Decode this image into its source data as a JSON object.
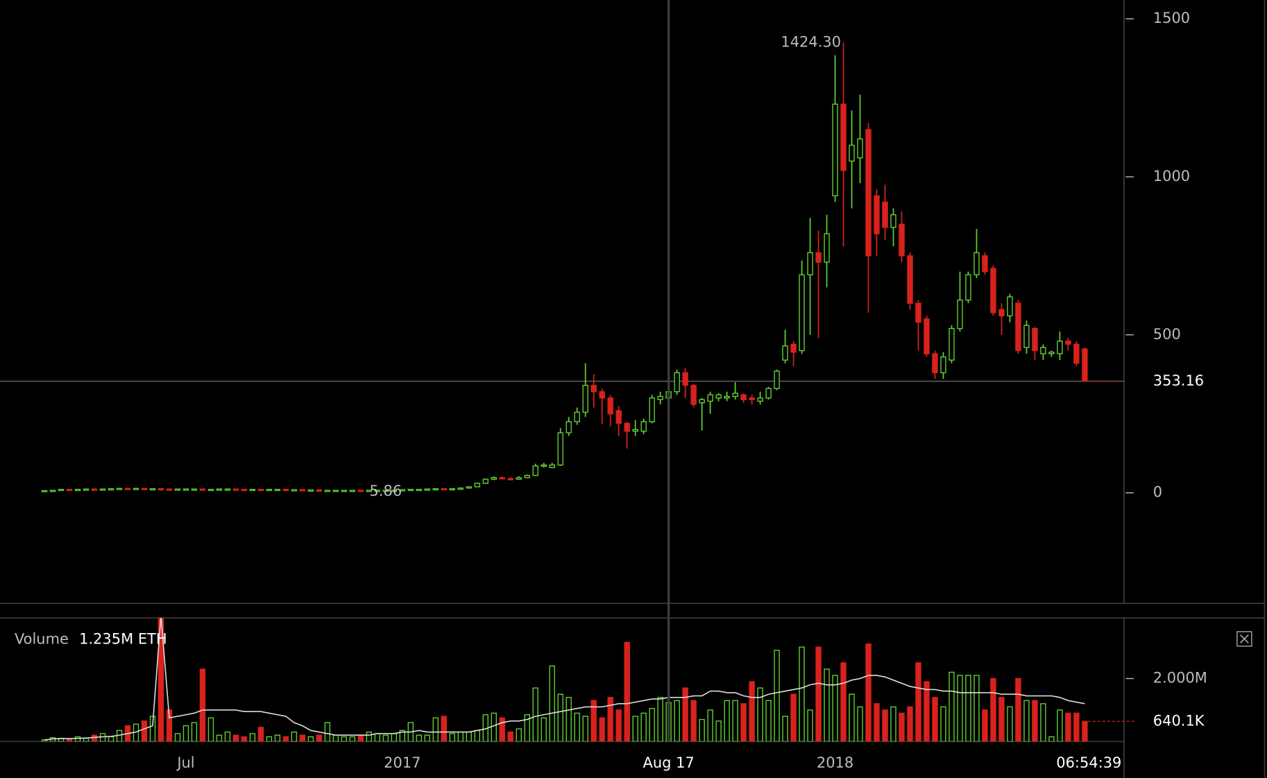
{
  "chart_data": [
    {
      "type": "candlestick",
      "colors": {
        "up": "#62d033",
        "down": "#d8221c"
      },
      "categories": [
        null,
        null,
        null,
        null,
        null,
        null,
        null,
        null,
        null,
        null,
        null,
        null,
        null,
        null,
        null,
        null,
        null,
        null,
        null,
        null,
        null,
        null,
        null,
        null,
        null,
        null,
        null,
        null,
        null,
        null,
        null,
        null,
        null,
        null,
        null,
        null,
        null,
        null,
        null,
        null,
        null,
        null,
        null,
        null,
        null,
        null,
        null,
        null,
        null,
        null,
        null,
        null,
        null,
        null,
        null,
        null,
        null,
        null,
        null,
        null,
        null,
        null,
        null,
        null,
        null,
        null,
        null,
        null,
        null,
        null,
        null,
        null,
        null,
        null,
        null,
        null,
        null,
        null,
        null,
        null,
        null,
        null,
        null,
        null,
        null,
        null,
        null,
        null,
        null,
        null,
        null,
        null,
        null,
        null,
        null,
        null,
        null,
        null,
        null,
        null,
        null,
        null,
        null,
        null,
        null,
        null,
        null,
        null,
        null,
        null,
        null,
        null,
        null,
        null,
        null,
        null,
        null,
        null,
        null,
        null,
        null,
        null,
        null,
        null,
        null,
        null
      ],
      "open": [
        6,
        7,
        8,
        11,
        10,
        11,
        12,
        11,
        12,
        13,
        14,
        13,
        14,
        12,
        13,
        12,
        11,
        12,
        12,
        12,
        11,
        11,
        12,
        12,
        11,
        10,
        11,
        10,
        11,
        11,
        10,
        10,
        9,
        9,
        8,
        8,
        8,
        8,
        8,
        7,
        8,
        8,
        8,
        8,
        10,
        11,
        11,
        12,
        13,
        12,
        13,
        15,
        19,
        30,
        43,
        48,
        45,
        43,
        48,
        55,
        85,
        80,
        88,
        190,
        225,
        255,
        340,
        320,
        300,
        260,
        220,
        195,
        195,
        225,
        295,
        300,
        320,
        380,
        340,
        285,
        290,
        300,
        300,
        305,
        310,
        300,
        290,
        300,
        330,
        420,
        470,
        450,
        690,
        760,
        730,
        940,
        1230,
        1050,
        1060,
        1150,
        940,
        920,
        840,
        850,
        750,
        600,
        550,
        440,
        380,
        420,
        520,
        610,
        690,
        750,
        710,
        580,
        560,
        600,
        460,
        520,
        440,
        440,
        440,
        480,
        470,
        455
      ],
      "high": [
        8,
        9,
        12,
        12,
        12,
        13,
        13,
        13,
        14,
        15,
        15,
        15,
        15,
        14,
        14,
        13,
        13,
        13,
        13,
        13,
        12,
        13,
        13,
        13,
        12,
        12,
        12,
        12,
        12,
        12,
        11,
        11,
        10,
        10,
        9,
        9,
        9,
        9,
        9,
        9,
        9,
        9,
        9,
        11,
        12,
        12,
        13,
        14,
        14,
        14,
        16,
        21,
        32,
        45,
        52,
        51,
        50,
        53,
        58,
        92,
        95,
        95,
        205,
        240,
        270,
        410,
        375,
        330,
        310,
        275,
        225,
        230,
        235,
        310,
        320,
        330,
        390,
        395,
        345,
        300,
        320,
        315,
        320,
        350,
        315,
        310,
        320,
        335,
        390,
        516,
        480,
        735,
        870,
        830,
        880,
        1385,
        1424.3,
        1210,
        1260,
        1170,
        960,
        975,
        900,
        890,
        760,
        610,
        560,
        450,
        445,
        530,
        700,
        700,
        835,
        760,
        720,
        600,
        630,
        610,
        545,
        525,
        470,
        450,
        510,
        490,
        480,
        460
      ],
      "low": [
        6,
        6,
        7,
        9,
        9,
        10,
        10,
        10,
        11,
        12,
        12,
        12,
        11,
        11,
        11,
        10,
        10,
        11,
        11,
        10,
        10,
        10,
        11,
        10,
        9,
        9,
        9,
        9,
        10,
        9,
        9,
        8,
        8,
        7,
        7,
        7,
        7,
        7,
        6.5,
        6.5,
        7,
        5.86,
        7,
        7.5,
        9,
        10,
        10,
        11,
        11,
        11,
        12,
        14,
        18,
        28,
        40,
        42,
        40,
        41,
        46,
        53,
        80,
        78,
        85,
        180,
        215,
        240,
        270,
        217,
        210,
        180,
        140,
        180,
        185,
        220,
        280,
        290,
        310,
        300,
        270,
        197,
        250,
        290,
        290,
        295,
        285,
        280,
        280,
        295,
        325,
        410,
        400,
        440,
        500,
        490,
        650,
        920,
        780,
        900,
        980,
        570,
        750,
        800,
        780,
        730,
        580,
        450,
        430,
        360,
        360,
        410,
        510,
        600,
        680,
        690,
        560,
        500,
        540,
        440,
        440,
        420,
        420,
        430,
        420,
        450,
        400,
        353
      ],
      "close": [
        7,
        8,
        11,
        10,
        11,
        12,
        11,
        12,
        13,
        14,
        13,
        14,
        12,
        13,
        12,
        11,
        12,
        12,
        12,
        11,
        11,
        12,
        12,
        11,
        10,
        11,
        10,
        11,
        11,
        10,
        10,
        9,
        9,
        8,
        8,
        8,
        8,
        8,
        7,
        8,
        8,
        8,
        8,
        10,
        11,
        11,
        12,
        13,
        12,
        13,
        15,
        19,
        30,
        43,
        48,
        45,
        43,
        48,
        55,
        85,
        88,
        88,
        190,
        225,
        255,
        340,
        320,
        300,
        250,
        220,
        195,
        200,
        225,
        300,
        305,
        320,
        380,
        340,
        280,
        295,
        310,
        310,
        305,
        315,
        295,
        295,
        300,
        330,
        385,
        465,
        445,
        690,
        760,
        730,
        820,
        1230,
        1020,
        1100,
        1120,
        750,
        820,
        840,
        880,
        750,
        600,
        540,
        440,
        380,
        430,
        520,
        610,
        690,
        760,
        700,
        570,
        560,
        620,
        450,
        530,
        450,
        460,
        445,
        480,
        470,
        410,
        353.16
      ],
      "ylim": [
        -350,
        1559
      ],
      "yticks": [
        0,
        500,
        1000,
        1500
      ],
      "xticks": [
        {
          "value": 17,
          "label": "Jul"
        },
        {
          "value": 43,
          "label": "2017"
        },
        {
          "value": 95,
          "label": "2018"
        }
      ],
      "crosshair": {
        "value": 75,
        "label": "Aug 17"
      },
      "last_price": 353.16,
      "high_label": {
        "value": 1424.3,
        "label": "1424.30"
      },
      "low_label": 5.86,
      "countdown": "06:54:39"
    },
    {
      "type": "bar",
      "title": "Volume",
      "readout": {
        "value": 1235000,
        "label": "1.235M ETH"
      },
      "values": [
        50000,
        120000,
        100000,
        90000,
        150000,
        100000,
        200000,
        250000,
        150000,
        350000,
        500000,
        550000,
        650000,
        800000,
        4100000,
        1000000,
        250000,
        500000,
        600000,
        2300000,
        750000,
        200000,
        300000,
        200000,
        150000,
        250000,
        450000,
        150000,
        200000,
        150000,
        300000,
        200000,
        150000,
        200000,
        600000,
        200000,
        150000,
        150000,
        200000,
        300000,
        250000,
        200000,
        250000,
        350000,
        600000,
        200000,
        200000,
        750000,
        800000,
        250000,
        300000,
        300000,
        350000,
        850000,
        900000,
        750000,
        300000,
        400000,
        850000,
        1700000,
        750000,
        2400000,
        1500000,
        1400000,
        900000,
        800000,
        1300000,
        750000,
        1400000,
        1000000,
        3150000,
        800000,
        900000,
        1050000,
        1400000,
        1235000,
        1300000,
        1700000,
        1300000,
        700000,
        1000000,
        650000,
        1300000,
        1300000,
        1200000,
        1900000,
        1700000,
        1300000,
        2900000,
        800000,
        1500000,
        3000000,
        1000000,
        3000000,
        2300000,
        2100000,
        2500000,
        1500000,
        1100000,
        3100000,
        1200000,
        1000000,
        1100000,
        900000,
        1100000,
        2500000,
        1900000,
        1400000,
        1100000,
        2200000,
        2100000,
        2100000,
        2100000,
        1000000,
        2000000,
        1400000,
        1100000,
        2000000,
        1300000,
        1300000,
        1200000,
        150000,
        1000000,
        900000,
        900000,
        640100
      ],
      "ma": [
        50000,
        80000,
        90000,
        90000,
        100000,
        110000,
        130000,
        150000,
        160000,
        200000,
        250000,
        300000,
        400000,
        500000,
        4000000,
        750000,
        800000,
        850000,
        900000,
        1000000,
        1000000,
        1000000,
        1000000,
        1000000,
        950000,
        950000,
        950000,
        900000,
        850000,
        800000,
        600000,
        500000,
        350000,
        300000,
        250000,
        200000,
        200000,
        200000,
        200000,
        200000,
        250000,
        250000,
        250000,
        300000,
        300000,
        350000,
        300000,
        300000,
        300000,
        300000,
        300000,
        300000,
        350000,
        400000,
        500000,
        600000,
        650000,
        650000,
        700000,
        800000,
        850000,
        900000,
        950000,
        1000000,
        1050000,
        1100000,
        1100000,
        1100000,
        1150000,
        1200000,
        1200000,
        1250000,
        1300000,
        1350000,
        1350000,
        1400000,
        1400000,
        1400000,
        1450000,
        1450000,
        1600000,
        1600000,
        1550000,
        1550000,
        1450000,
        1400000,
        1400000,
        1500000,
        1550000,
        1600000,
        1650000,
        1700000,
        1800000,
        1850000,
        1800000,
        1800000,
        1850000,
        1950000,
        2000000,
        2100000,
        2100000,
        2050000,
        1950000,
        1850000,
        1750000,
        1700000,
        1650000,
        1650000,
        1600000,
        1600000,
        1550000,
        1550000,
        1550000,
        1550000,
        1550000,
        1500000,
        1500000,
        1500000,
        1450000,
        1450000,
        1450000,
        1450000,
        1400000,
        1300000,
        1250000,
        1200000
      ],
      "ma_color": "#dcdcdc",
      "ylim": [
        0,
        3926000
      ],
      "yticks": [
        {
          "value": 2000000,
          "label": "2.000M"
        }
      ],
      "current": {
        "value": 640100,
        "label": "640.1K"
      }
    }
  ]
}
